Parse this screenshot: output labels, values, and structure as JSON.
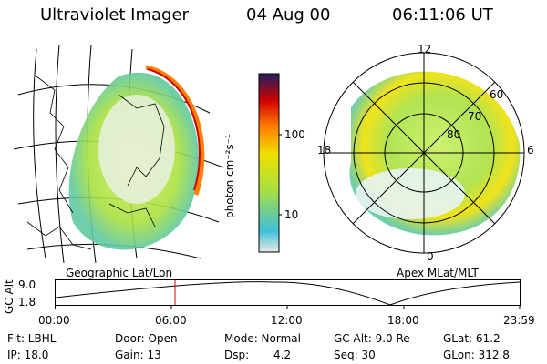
{
  "header": {
    "title": "Ultraviolet Imager",
    "date": "04 Aug 00",
    "time": "06:11:06 UT"
  },
  "left_panel": {
    "label": "Geographic Lat/Lon"
  },
  "right_panel": {
    "label": "Apex MLat/MLT",
    "mlt_labels": {
      "top": "12",
      "left": "18",
      "right": "6",
      "bottom": "0"
    },
    "lat_labels": [
      "60",
      "70",
      "80"
    ]
  },
  "colorbar": {
    "unit": "photon cm⁻²s⁻¹",
    "ticks": [
      "100",
      "10"
    ],
    "scale": "log",
    "colors": [
      "#e8e8e8",
      "#40c0d8",
      "#a8e040",
      "#f0e000",
      "#ff8000",
      "#d00000",
      "#202060"
    ]
  },
  "altitude_plot": {
    "ylabel": "GC Alt",
    "yticks": [
      "9.0",
      "1.8"
    ],
    "xticks": [
      "00:00",
      "06:00",
      "12:00",
      "18:00",
      "23:59"
    ],
    "marker_time": "06:11",
    "marker_color": "#d00000"
  },
  "info": {
    "row1": {
      "filter": "Flt: LBHL",
      "door": "Door: Open",
      "mode": "Mode: Normal",
      "gc_alt": "GC Alt: 9.0 Re",
      "glat": "GLat:  61.2"
    },
    "row2": {
      "ip": "IP: 18.0",
      "gain": "Gain: 13",
      "dsp_label": "Dsp:",
      "dsp_value": "4.2",
      "seq": "Seq: 30",
      "glon": "GLon: 312.8"
    }
  }
}
